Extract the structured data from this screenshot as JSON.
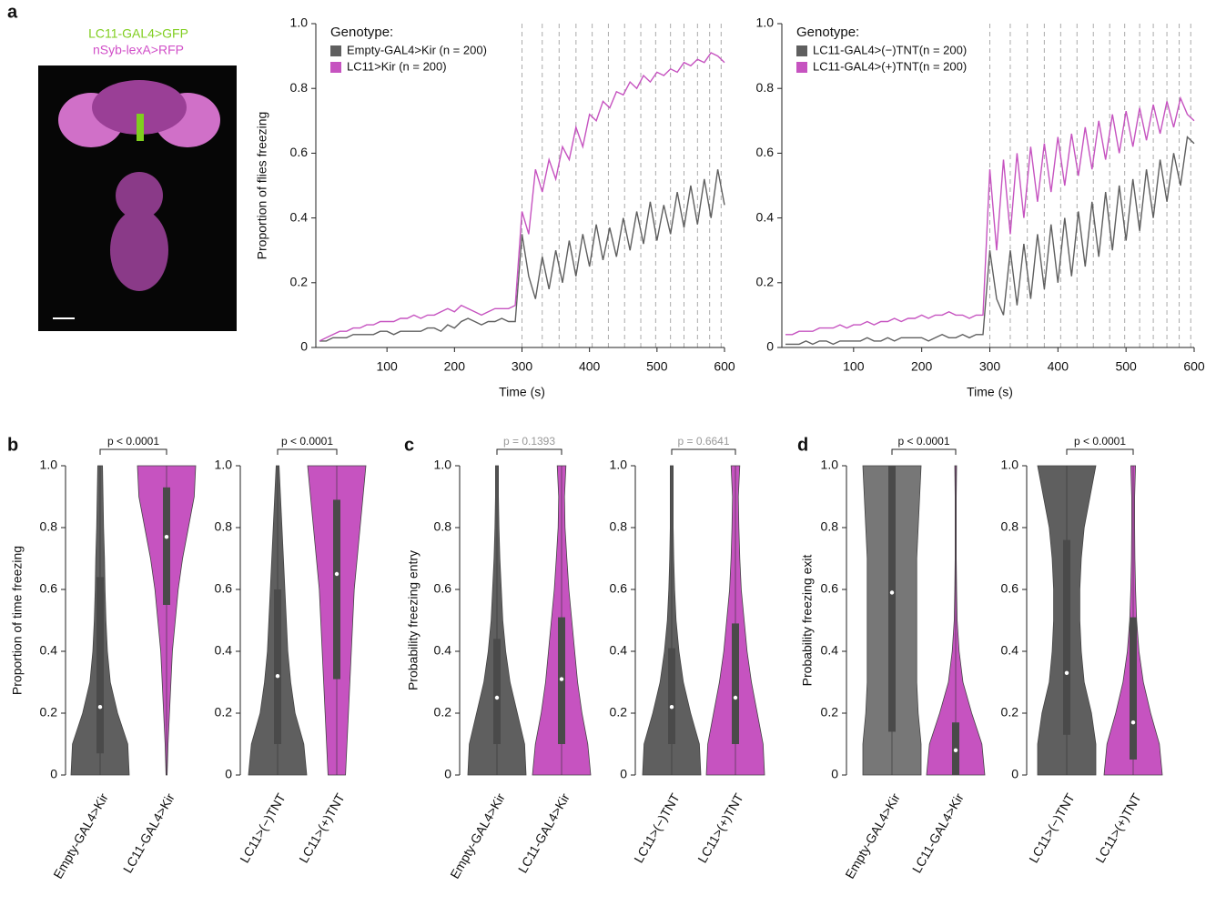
{
  "panel_labels": [
    "a",
    "b",
    "c",
    "d"
  ],
  "image_labels": [
    "LC11-GAL4>GFP",
    "nSyb-lexA>RFP"
  ],
  "chart_data": [
    {
      "type": "line",
      "ylabel": "Proportion of flies freezing",
      "xlabel": "Time (s)",
      "legend_title": "Genotype:",
      "xlim": [
        0,
        600
      ],
      "xticks": [
        100,
        200,
        300,
        400,
        500,
        600
      ],
      "ylim": [
        0,
        1
      ],
      "yticks": [
        0,
        0.2,
        0.4,
        0.6,
        0.8,
        {
          "value": 1,
          "label": "1.0"
        }
      ],
      "stimulus_times": [
        300,
        330,
        355,
        380,
        404,
        428,
        452,
        476,
        498,
        520,
        540,
        560,
        578,
        595
      ],
      "x": [
        0,
        10,
        20,
        30,
        40,
        50,
        60,
        70,
        80,
        90,
        100,
        110,
        120,
        130,
        140,
        150,
        160,
        170,
        180,
        190,
        200,
        210,
        220,
        230,
        240,
        250,
        260,
        270,
        280,
        290,
        300,
        310,
        320,
        330,
        340,
        350,
        360,
        370,
        380,
        390,
        400,
        410,
        420,
        430,
        440,
        450,
        460,
        470,
        480,
        490,
        500,
        510,
        520,
        530,
        540,
        550,
        560,
        570,
        580,
        590,
        600
      ],
      "series": [
        {
          "name": "Empty-GAL4>Kir (n = 200)",
          "color": "#5f5f5f",
          "values": [
            0.02,
            0.02,
            0.03,
            0.03,
            0.03,
            0.04,
            0.04,
            0.04,
            0.04,
            0.05,
            0.05,
            0.04,
            0.05,
            0.05,
            0.05,
            0.05,
            0.06,
            0.06,
            0.05,
            0.07,
            0.06,
            0.08,
            0.09,
            0.08,
            0.07,
            0.08,
            0.08,
            0.09,
            0.08,
            0.08,
            0.35,
            0.22,
            0.15,
            0.28,
            0.18,
            0.3,
            0.2,
            0.33,
            0.22,
            0.35,
            0.25,
            0.38,
            0.27,
            0.37,
            0.28,
            0.4,
            0.3,
            0.42,
            0.32,
            0.45,
            0.33,
            0.44,
            0.35,
            0.48,
            0.37,
            0.5,
            0.38,
            0.52,
            0.4,
            0.55,
            0.44
          ]
        },
        {
          "name": "LC11>Kir (n = 200)",
          "color": "#c653c0",
          "values": [
            0.02,
            0.03,
            0.04,
            0.05,
            0.05,
            0.06,
            0.06,
            0.07,
            0.07,
            0.08,
            0.08,
            0.08,
            0.09,
            0.09,
            0.1,
            0.09,
            0.1,
            0.1,
            0.11,
            0.12,
            0.11,
            0.13,
            0.12,
            0.11,
            0.1,
            0.11,
            0.12,
            0.12,
            0.12,
            0.13,
            0.42,
            0.35,
            0.55,
            0.48,
            0.58,
            0.52,
            0.62,
            0.58,
            0.68,
            0.62,
            0.72,
            0.7,
            0.76,
            0.74,
            0.79,
            0.78,
            0.82,
            0.8,
            0.84,
            0.82,
            0.85,
            0.84,
            0.86,
            0.85,
            0.88,
            0.87,
            0.89,
            0.88,
            0.91,
            0.9,
            0.88
          ]
        }
      ]
    },
    {
      "type": "line",
      "xlabel": "Time (s)",
      "legend_title": "Genotype:",
      "xlim": [
        0,
        600
      ],
      "xticks": [
        100,
        200,
        300,
        400,
        500,
        600
      ],
      "ylim": [
        0,
        1
      ],
      "yticks": [
        0,
        0.2,
        0.4,
        0.6,
        0.8,
        {
          "value": 1,
          "label": "1.0"
        }
      ],
      "stimulus_times": [
        300,
        330,
        355,
        380,
        404,
        428,
        452,
        476,
        498,
        520,
        540,
        560,
        578,
        595
      ],
      "x": [
        0,
        10,
        20,
        30,
        40,
        50,
        60,
        70,
        80,
        90,
        100,
        110,
        120,
        130,
        140,
        150,
        160,
        170,
        180,
        190,
        200,
        210,
        220,
        230,
        240,
        250,
        260,
        270,
        280,
        290,
        300,
        310,
        320,
        330,
        340,
        350,
        360,
        370,
        380,
        390,
        400,
        410,
        420,
        430,
        440,
        450,
        460,
        470,
        480,
        490,
        500,
        510,
        520,
        530,
        540,
        550,
        560,
        570,
        580,
        590,
        600
      ],
      "series": [
        {
          "name": "LC11-GAL4>(−)TNT(n = 200)",
          "color": "#5f5f5f",
          "values": [
            0.01,
            0.01,
            0.01,
            0.02,
            0.01,
            0.02,
            0.02,
            0.01,
            0.02,
            0.02,
            0.02,
            0.02,
            0.03,
            0.02,
            0.02,
            0.03,
            0.02,
            0.03,
            0.03,
            0.03,
            0.03,
            0.02,
            0.03,
            0.04,
            0.03,
            0.03,
            0.04,
            0.03,
            0.04,
            0.04,
            0.3,
            0.15,
            0.1,
            0.3,
            0.13,
            0.32,
            0.15,
            0.35,
            0.18,
            0.38,
            0.2,
            0.4,
            0.22,
            0.42,
            0.25,
            0.45,
            0.28,
            0.48,
            0.3,
            0.5,
            0.33,
            0.52,
            0.36,
            0.55,
            0.4,
            0.58,
            0.45,
            0.6,
            0.5,
            0.65,
            0.63
          ]
        },
        {
          "name": "LC11-GAL4>(+)TNT(n = 200)",
          "color": "#c653c0",
          "values": [
            0.04,
            0.04,
            0.05,
            0.05,
            0.05,
            0.06,
            0.06,
            0.06,
            0.07,
            0.06,
            0.07,
            0.07,
            0.08,
            0.07,
            0.08,
            0.08,
            0.09,
            0.08,
            0.09,
            0.09,
            0.1,
            0.09,
            0.1,
            0.1,
            0.11,
            0.1,
            0.1,
            0.09,
            0.1,
            0.1,
            0.55,
            0.3,
            0.58,
            0.35,
            0.6,
            0.4,
            0.62,
            0.45,
            0.63,
            0.48,
            0.65,
            0.5,
            0.66,
            0.53,
            0.68,
            0.55,
            0.7,
            0.58,
            0.72,
            0.6,
            0.73,
            0.62,
            0.74,
            0.64,
            0.75,
            0.66,
            0.76,
            0.68,
            0.77,
            0.72,
            0.7
          ]
        }
      ]
    },
    {
      "type": "violin",
      "ylabel": "Proportion of time freezing",
      "annotation": "p < 0.0001",
      "annotation_color": "#111",
      "categories": [
        "Empty-GAL4>Kir",
        "LC11-GAL4>Kir"
      ],
      "colors": [
        "#5f5f5f",
        "#c653c0"
      ],
      "ylim": [
        0,
        1
      ],
      "yticks": [
        0,
        0.2,
        0.4,
        0.6,
        0.8,
        {
          "value": 1,
          "label": "1.0"
        }
      ],
      "density_levels": [
        0,
        0.1,
        0.2,
        0.3,
        0.4,
        0.5,
        0.6,
        0.7,
        0.8,
        0.9,
        1
      ],
      "density": [
        [
          1,
          0.95,
          0.6,
          0.35,
          0.25,
          0.2,
          0.17,
          0.15,
          0.12,
          0.1,
          0.08
        ],
        [
          0.02,
          0.05,
          0.1,
          0.15,
          0.2,
          0.3,
          0.4,
          0.55,
          0.75,
          0.95,
          1
        ]
      ],
      "median": [
        0.22,
        0.77
      ],
      "q1": [
        0.07,
        0.55
      ],
      "q3": [
        0.64,
        0.93
      ]
    },
    {
      "type": "violin",
      "annotation": "p < 0.0001",
      "annotation_color": "#111",
      "categories": [
        "LC11>(−)TNT",
        "LC11>(+)TNT"
      ],
      "colors": [
        "#5f5f5f",
        "#c653c0"
      ],
      "ylim": [
        0,
        1
      ],
      "yticks": [
        0,
        0.2,
        0.4,
        0.6,
        0.8,
        {
          "value": 1,
          "label": "1.0"
        }
      ],
      "density_levels": [
        0,
        0.1,
        0.2,
        0.3,
        0.4,
        0.5,
        0.6,
        0.7,
        0.8,
        0.9,
        1
      ],
      "density": [
        [
          1,
          0.9,
          0.6,
          0.45,
          0.35,
          0.3,
          0.25,
          0.2,
          0.15,
          0.1,
          0.05
        ],
        [
          0.3,
          0.35,
          0.4,
          0.45,
          0.5,
          0.55,
          0.6,
          0.7,
          0.8,
          0.9,
          1
        ]
      ],
      "median": [
        0.32,
        0.65
      ],
      "q1": [
        0.1,
        0.31
      ],
      "q3": [
        0.6,
        0.89
      ]
    },
    {
      "type": "violin",
      "ylabel": "Probability freezing entry",
      "annotation": "p = 0.1393",
      "annotation_color": "#999",
      "categories": [
        "Empty-GAL4>Kir",
        "LC11-GAL4>Kir"
      ],
      "colors": [
        "#5f5f5f",
        "#c653c0"
      ],
      "ylim": [
        0,
        1
      ],
      "yticks": [
        0,
        0.2,
        0.4,
        0.6,
        0.8,
        {
          "value": 1,
          "label": "1.0"
        }
      ],
      "density_levels": [
        0,
        0.1,
        0.2,
        0.3,
        0.4,
        0.5,
        0.6,
        0.7,
        0.8,
        0.9,
        1
      ],
      "density": [
        [
          1,
          0.95,
          0.7,
          0.45,
          0.3,
          0.2,
          0.15,
          0.1,
          0.07,
          0.05,
          0.05
        ],
        [
          1,
          0.9,
          0.7,
          0.55,
          0.45,
          0.35,
          0.25,
          0.18,
          0.12,
          0.1,
          0.15
        ]
      ],
      "median": [
        0.25,
        0.31
      ],
      "q1": [
        0.1,
        0.1
      ],
      "q3": [
        0.44,
        0.51
      ]
    },
    {
      "type": "violin",
      "annotation": "p = 0.6641",
      "annotation_color": "#999",
      "categories": [
        "LC11>(−)TNT",
        "LC11>(+)TNT"
      ],
      "colors": [
        "#5f5f5f",
        "#c653c0"
      ],
      "ylim": [
        0,
        1
      ],
      "yticks": [
        0,
        0.2,
        0.4,
        0.6,
        0.8,
        {
          "value": 1,
          "label": "1.0"
        }
      ],
      "density_levels": [
        0,
        0.1,
        0.2,
        0.3,
        0.4,
        0.5,
        0.6,
        0.7,
        0.8,
        0.9,
        1
      ],
      "density": [
        [
          1,
          0.95,
          0.65,
          0.4,
          0.25,
          0.15,
          0.1,
          0.07,
          0.05,
          0.05,
          0.05
        ],
        [
          1,
          0.95,
          0.75,
          0.55,
          0.4,
          0.3,
          0.2,
          0.15,
          0.12,
          0.1,
          0.15
        ]
      ],
      "median": [
        0.22,
        0.25
      ],
      "q1": [
        0.1,
        0.1
      ],
      "q3": [
        0.41,
        0.49
      ]
    },
    {
      "type": "violin",
      "ylabel": "Probability freezing exit",
      "annotation": "p < 0.0001",
      "annotation_color": "#111",
      "categories": [
        "Empty-GAL4>Kir",
        "LC11-GAL4>Kir"
      ],
      "colors": [
        "#777777",
        "#c653c0"
      ],
      "ylim": [
        0,
        1
      ],
      "yticks": [
        0,
        0.2,
        0.4,
        0.6,
        0.8,
        {
          "value": 1,
          "label": "1.0"
        }
      ],
      "density_levels": [
        0,
        0.1,
        0.2,
        0.3,
        0.4,
        0.5,
        0.6,
        0.7,
        0.8,
        0.9,
        1
      ],
      "density": [
        [
          1,
          1,
          0.9,
          0.85,
          0.85,
          0.85,
          0.85,
          0.85,
          0.9,
          0.95,
          1
        ],
        [
          1,
          0.9,
          0.55,
          0.25,
          0.12,
          0.05,
          0.03,
          0.02,
          0.02,
          0.02,
          0.03
        ]
      ],
      "median": [
        0.59,
        0.08
      ],
      "q1": [
        0.14,
        0
      ],
      "q3": [
        1,
        0.17
      ]
    },
    {
      "type": "violin",
      "annotation": "p < 0.0001",
      "annotation_color": "#111",
      "categories": [
        "LC11>(−)TNT",
        "LC11>(+)TNT"
      ],
      "colors": [
        "#5f5f5f",
        "#c653c0"
      ],
      "ylim": [
        0,
        1
      ],
      "yticks": [
        0,
        0.2,
        0.4,
        0.6,
        0.8,
        {
          "value": 1,
          "label": "1.0"
        }
      ],
      "density_levels": [
        0,
        0.1,
        0.2,
        0.3,
        0.4,
        0.5,
        0.6,
        0.7,
        0.8,
        0.9,
        1
      ],
      "density": [
        [
          1,
          1,
          0.85,
          0.6,
          0.5,
          0.45,
          0.45,
          0.5,
          0.6,
          0.8,
          1
        ],
        [
          1,
          0.9,
          0.6,
          0.35,
          0.2,
          0.12,
          0.08,
          0.06,
          0.05,
          0.05,
          0.08
        ]
      ],
      "median": [
        0.33,
        0.17
      ],
      "q1": [
        0.13,
        0.05
      ],
      "q3": [
        0.76,
        0.51
      ]
    }
  ]
}
